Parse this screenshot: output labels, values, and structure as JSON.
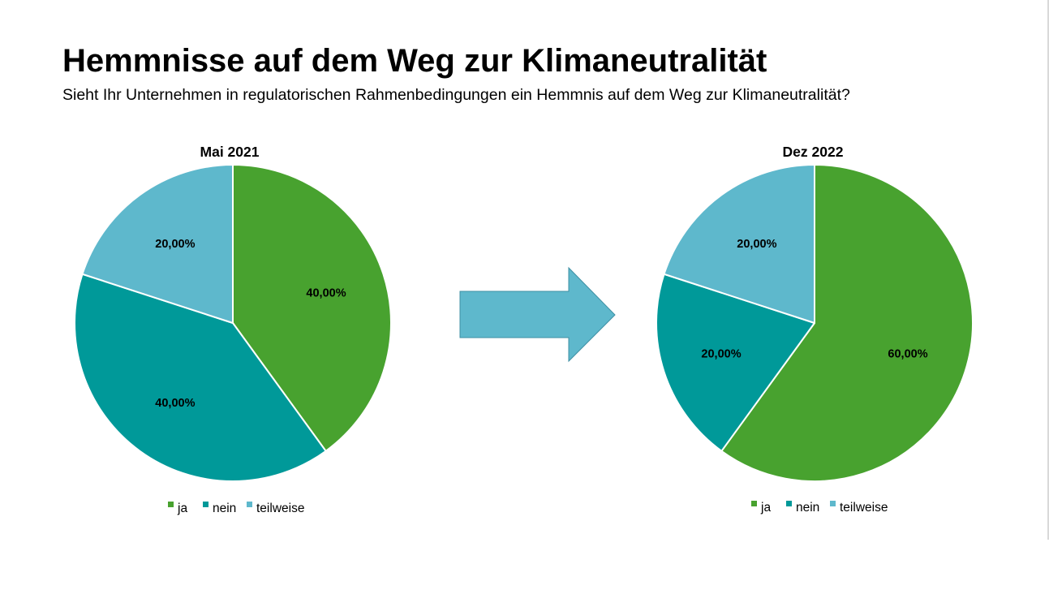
{
  "title": "Hemmnisse auf dem Weg zur Klimaneutralität",
  "subtitle": "Sieht Ihr Unternehmen in regulatorischen Rahmenbedingungen ein Hemmnis auf dem Weg zur Klimaneutralität?",
  "arrow_icon": "right-arrow-icon",
  "colors": {
    "ja": "#48A22F",
    "nein": "#009999",
    "teilweise": "#5EB8CC",
    "arrow": "#5EB8CC",
    "arrow_stroke": "#3E8FA3"
  },
  "chart_data": [
    {
      "type": "pie",
      "title": "Mai 2021",
      "categories": [
        "ja",
        "nein",
        "teilweise"
      ],
      "values": [
        40,
        40,
        20
      ],
      "labels": [
        "40,00%",
        "40,00%",
        "20,00%"
      ],
      "legend": [
        "ja",
        "nein",
        "teilweise"
      ],
      "legend_position": "bottom"
    },
    {
      "type": "pie",
      "title": "Dez 2022",
      "categories": [
        "ja",
        "nein",
        "teilweise"
      ],
      "values": [
        60,
        20,
        20
      ],
      "labels": [
        "60,00%",
        "20,00%",
        "20,00%"
      ],
      "legend": [
        "ja",
        "nein",
        "teilweise"
      ],
      "legend_position": "bottom"
    }
  ]
}
